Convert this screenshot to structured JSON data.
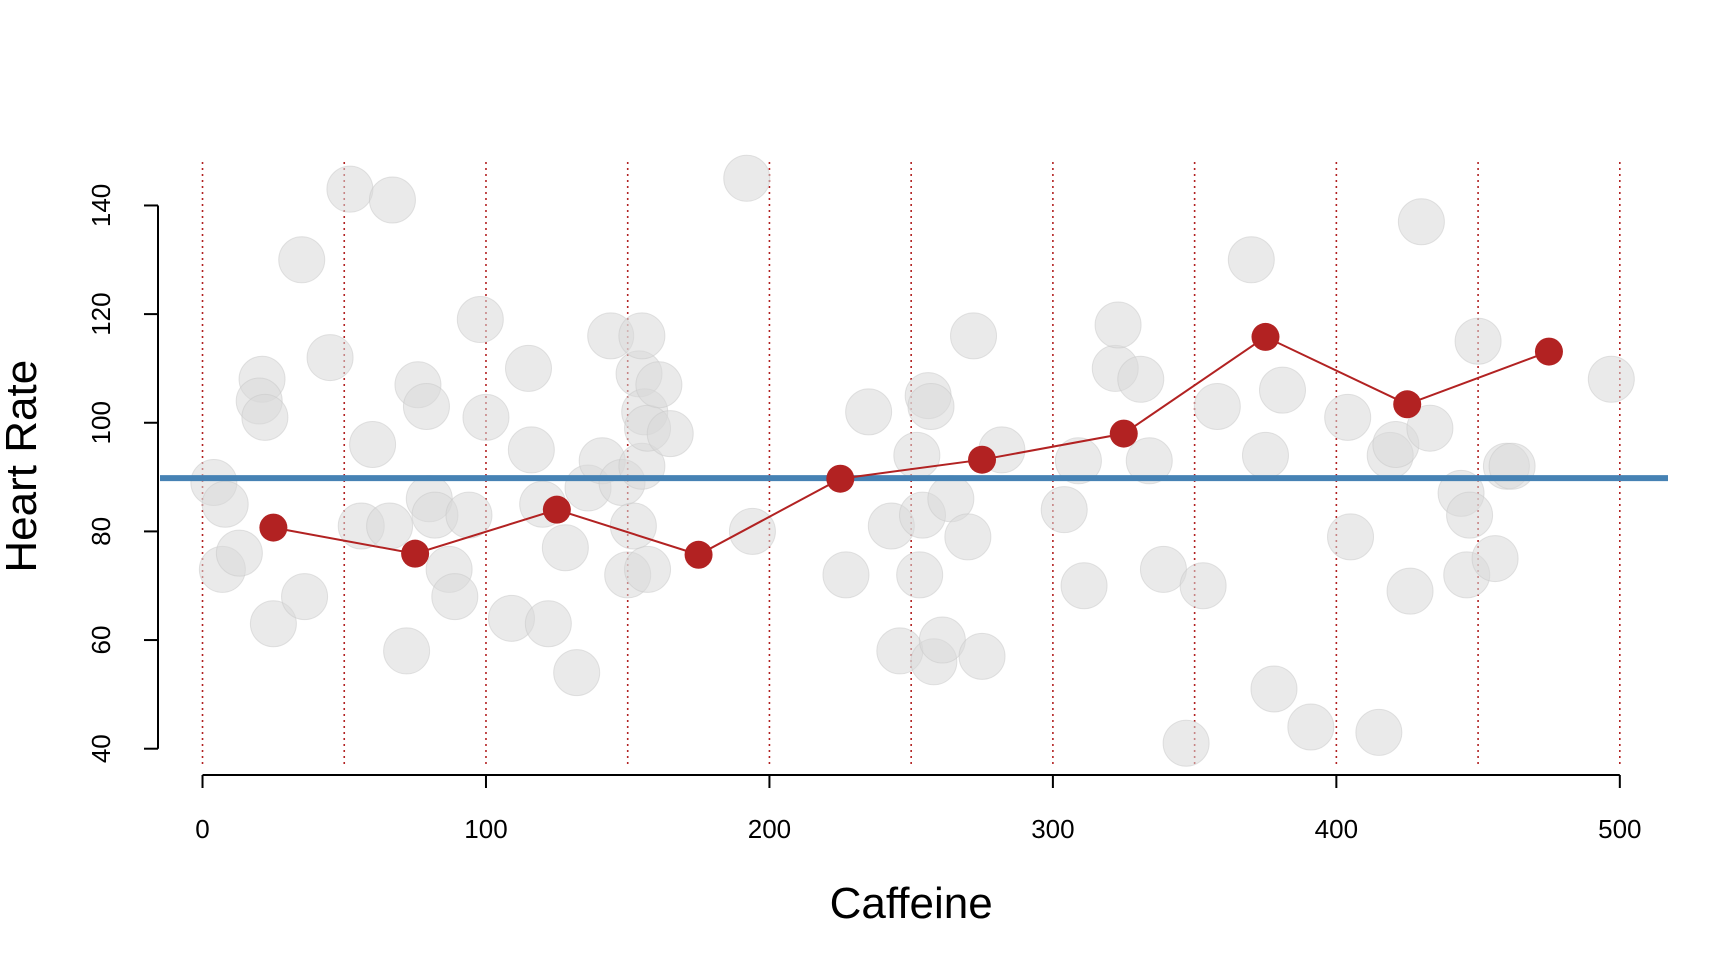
{
  "chart_data": {
    "type": "scatter",
    "title": "",
    "xlabel": "Caffeine",
    "ylabel": "Heart Rate",
    "xlim": [
      -15,
      517
    ],
    "ylim": [
      37,
      148
    ],
    "x_ticks": [
      0,
      100,
      200,
      300,
      400,
      500
    ],
    "y_ticks": [
      40,
      60,
      80,
      100,
      120,
      140
    ],
    "bin_lines": [
      0,
      50,
      100,
      150,
      200,
      250,
      300,
      350,
      400,
      450,
      500
    ],
    "mean_line": 89.8,
    "colors": {
      "points": "#d9d9d9",
      "bin_lines": "#b22222",
      "bin_means": "#b22222",
      "mean_line": "#4682b4"
    },
    "series": [
      {
        "kind": "points",
        "x": [
          4,
          8,
          7,
          13,
          25,
          21,
          20,
          22,
          35,
          36,
          45,
          52,
          56,
          60,
          66,
          67,
          72,
          76,
          79,
          80,
          82,
          87,
          89,
          94,
          98,
          100,
          109,
          115,
          116,
          120,
          122,
          128,
          132,
          136,
          141,
          144,
          148,
          150,
          152,
          154,
          155,
          155,
          156,
          157,
          157,
          161,
          165,
          192,
          194
        ],
        "y": [
          89,
          85,
          73,
          76,
          63,
          108,
          104,
          101,
          130,
          68,
          112,
          143,
          81,
          96,
          81,
          141,
          58,
          107,
          103,
          86,
          83,
          73,
          68,
          83,
          119,
          101,
          64,
          110,
          95,
          85,
          63,
          77,
          54,
          88,
          93,
          116,
          89,
          72,
          81,
          109,
          92,
          116,
          102,
          73,
          99,
          107,
          98,
          145,
          80
        ]
      },
      {
        "kind": "points",
        "x": [
          227,
          235,
          243,
          246,
          252,
          253,
          254,
          256,
          257,
          258,
          261,
          264,
          270,
          272,
          275,
          282,
          304,
          309,
          311,
          322,
          323,
          331,
          334,
          339,
          347,
          353,
          358,
          370,
          375,
          378,
          381,
          391,
          404,
          405,
          415,
          419,
          421,
          426,
          430,
          433,
          444,
          446,
          447,
          450,
          456,
          460,
          462,
          497
        ],
        "y": [
          72,
          102,
          81,
          58,
          94,
          72,
          83,
          105,
          103,
          56,
          60,
          86,
          79,
          116,
          57,
          95,
          84,
          93,
          70,
          110,
          118,
          108,
          93,
          73,
          41,
          70,
          103,
          130,
          94,
          51,
          106,
          44,
          101,
          79,
          43,
          94,
          96,
          69,
          137,
          99,
          87,
          72,
          83,
          115,
          75,
          92,
          92,
          108
        ]
      },
      {
        "kind": "bin_means",
        "x": [
          25,
          75,
          125,
          175,
          225,
          275,
          325,
          375,
          425,
          475
        ],
        "y": [
          80.7,
          75.9,
          84.0,
          75.7,
          89.7,
          93.2,
          98.0,
          115.8,
          103.4,
          113.1
        ]
      }
    ]
  }
}
